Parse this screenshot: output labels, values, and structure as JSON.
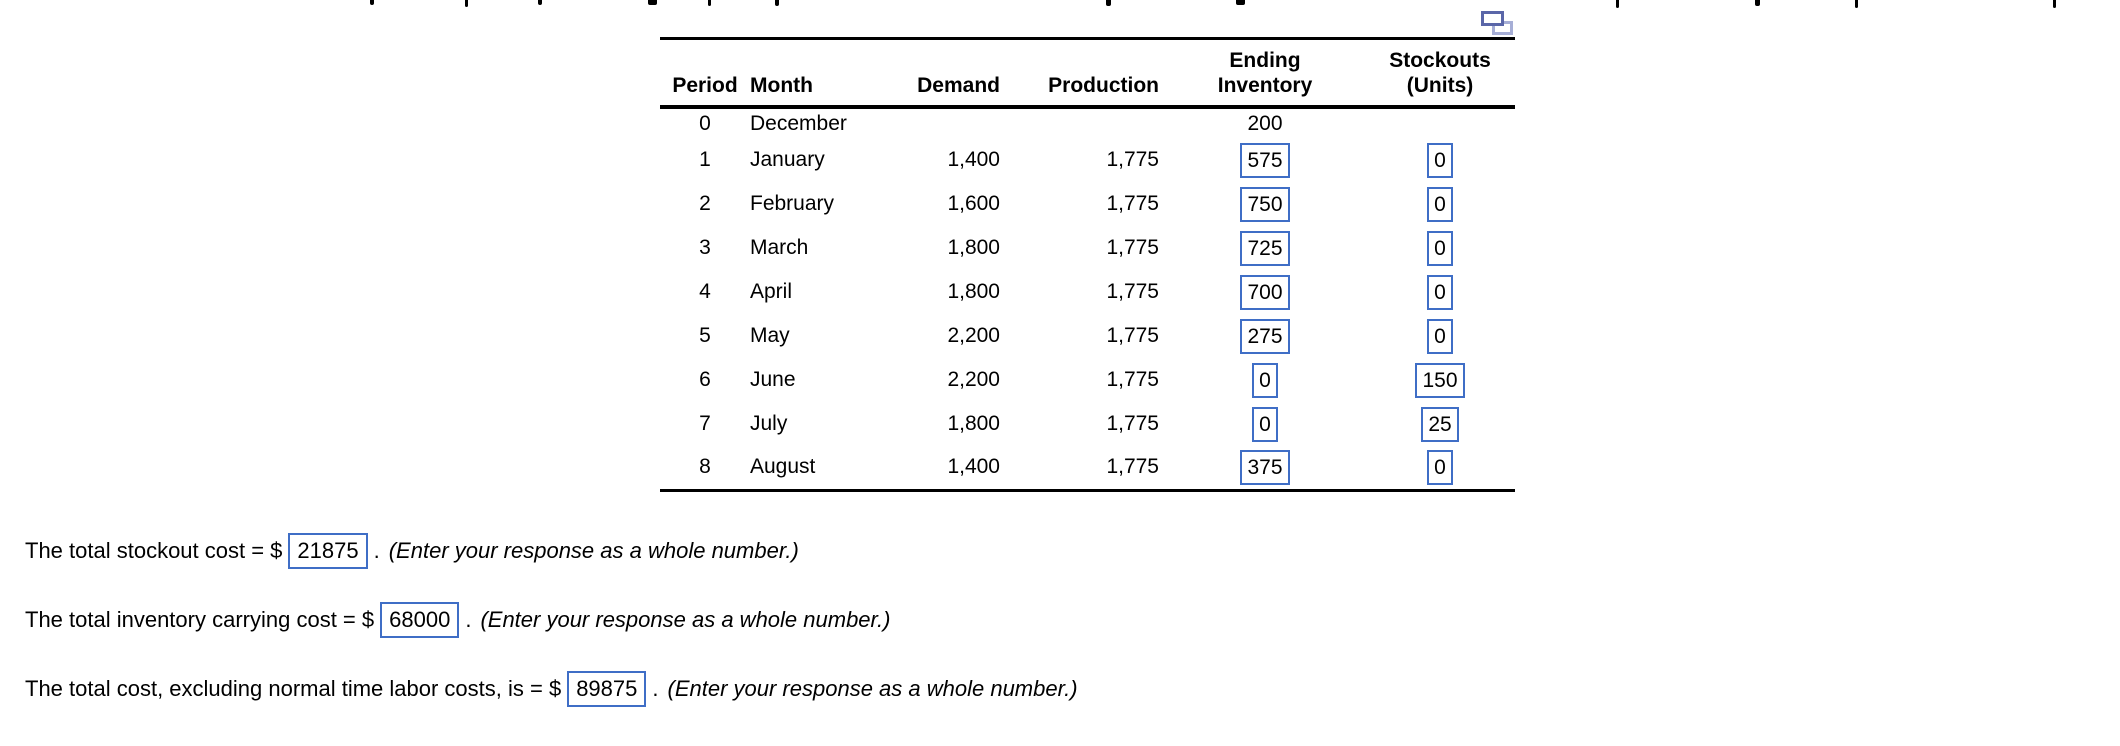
{
  "colors": {
    "input_border": "#3f6ec6",
    "icon_front": "#5a66a8",
    "icon_back": "#a6aed6",
    "text": "#000000"
  },
  "icons": {
    "top_right": "duplicate-window-icon"
  },
  "table": {
    "headers": {
      "period": "Period",
      "month": "Month",
      "demand": "Demand",
      "production": "Production",
      "ending_inventory": [
        "Ending",
        "Inventory"
      ],
      "stockouts": [
        "Stockouts",
        "(Units)"
      ]
    },
    "rows": [
      {
        "period": "0",
        "month": "December",
        "demand": "",
        "production": "",
        "inventory": "200",
        "inventory_boxed": false,
        "stockout": "",
        "stockout_boxed": false
      },
      {
        "period": "1",
        "month": "January",
        "demand": "1,400",
        "production": "1,775",
        "inventory": "575",
        "inventory_boxed": true,
        "stockout": "0",
        "stockout_boxed": true
      },
      {
        "period": "2",
        "month": "February",
        "demand": "1,600",
        "production": "1,775",
        "inventory": "750",
        "inventory_boxed": true,
        "stockout": "0",
        "stockout_boxed": true
      },
      {
        "period": "3",
        "month": "March",
        "demand": "1,800",
        "production": "1,775",
        "inventory": "725",
        "inventory_boxed": true,
        "stockout": "0",
        "stockout_boxed": true
      },
      {
        "period": "4",
        "month": "April",
        "demand": "1,800",
        "production": "1,775",
        "inventory": "700",
        "inventory_boxed": true,
        "stockout": "0",
        "stockout_boxed": true
      },
      {
        "period": "5",
        "month": "May",
        "demand": "2,200",
        "production": "1,775",
        "inventory": "275",
        "inventory_boxed": true,
        "stockout": "0",
        "stockout_boxed": true
      },
      {
        "period": "6",
        "month": "June",
        "demand": "2,200",
        "production": "1,775",
        "inventory": "0",
        "inventory_boxed": true,
        "stockout": "150",
        "stockout_boxed": true
      },
      {
        "period": "7",
        "month": "July",
        "demand": "1,800",
        "production": "1,775",
        "inventory": "0",
        "inventory_boxed": true,
        "stockout": "25",
        "stockout_boxed": true
      },
      {
        "period": "8",
        "month": "August",
        "demand": "1,400",
        "production": "1,775",
        "inventory": "375",
        "inventory_boxed": true,
        "stockout": "0",
        "stockout_boxed": true
      }
    ]
  },
  "questions": [
    {
      "prefix": "The total stockout cost = $",
      "value": "21875",
      "period": ".",
      "note": "(Enter your response as a whole number.)"
    },
    {
      "prefix": "The total inventory carrying cost = $",
      "value": "68000",
      "period": ".",
      "note": "(Enter your response as a whole number.)"
    },
    {
      "prefix": "The total cost, excluding normal time labor costs, is = $",
      "value": "89875",
      "period": ".",
      "note": "(Enter your response as a whole number.)"
    }
  ]
}
